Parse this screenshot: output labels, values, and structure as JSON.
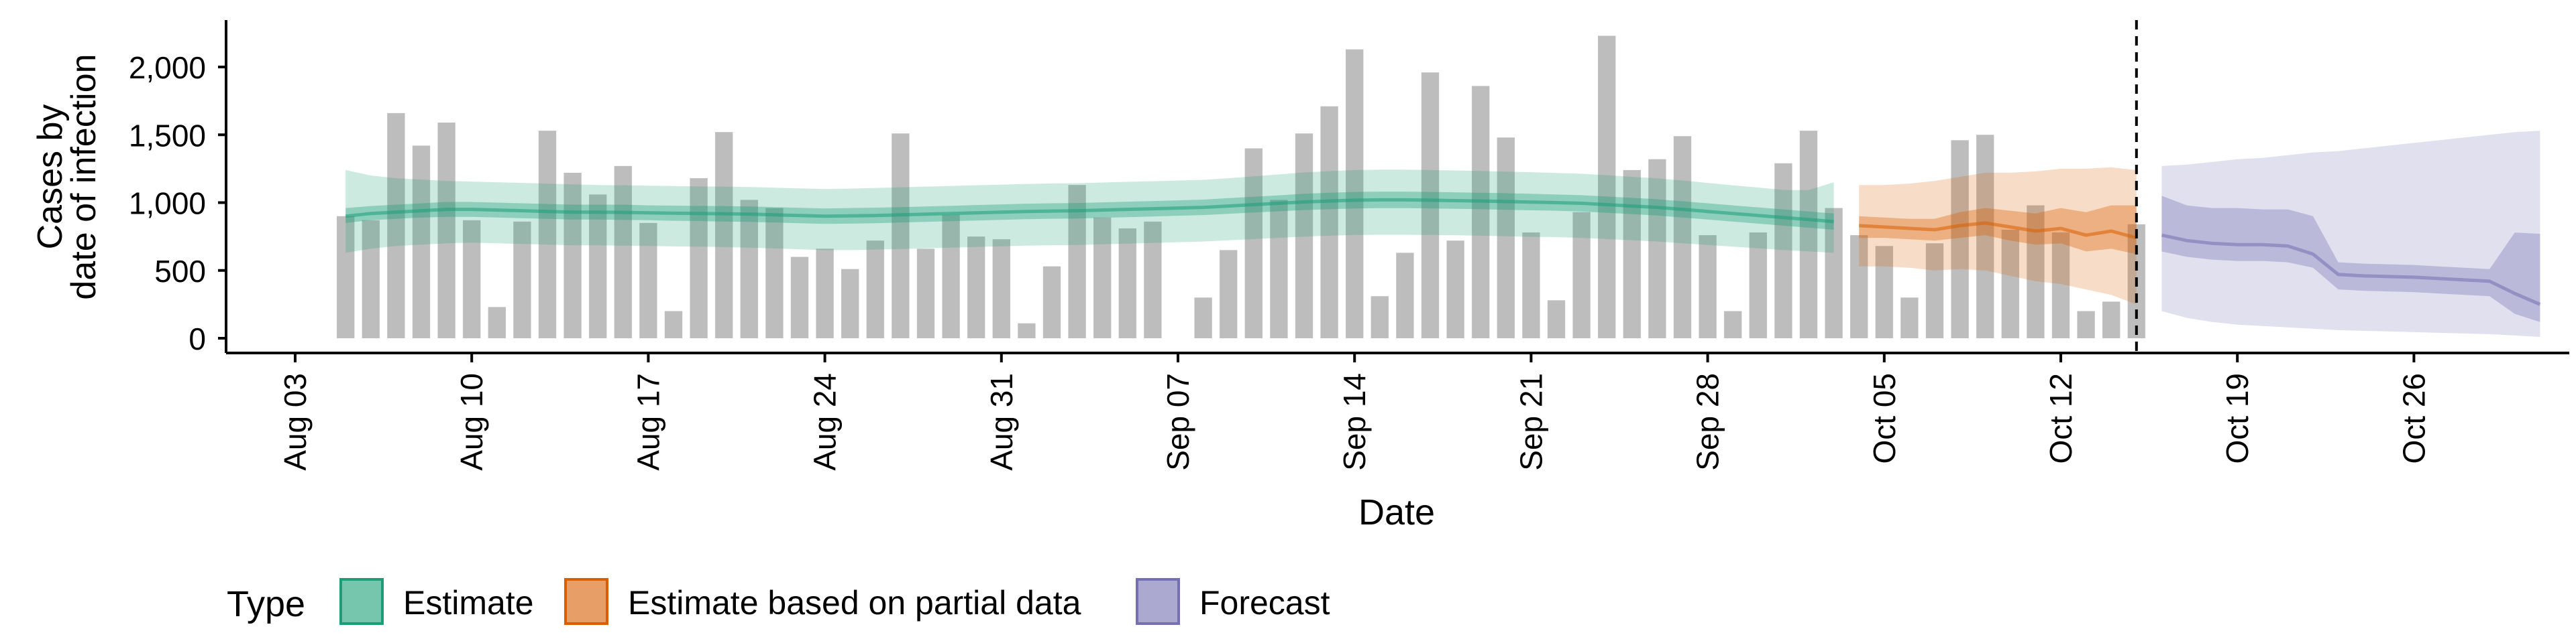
{
  "chart_data": {
    "type": "bar",
    "xlabel": "Date",
    "ylabel_lines": [
      "Cases by",
      "date of infection"
    ],
    "ylim": [
      0,
      2400
    ],
    "yticks": [
      0,
      500,
      1000,
      1500,
      2000
    ],
    "ytick_labels": [
      "0",
      "500",
      "1,000",
      "1,500",
      "2,000"
    ],
    "xlim": [
      "2020-07-31",
      "2020-10-31"
    ],
    "xtick_dates": [
      "2020-08-03",
      "2020-08-10",
      "2020-08-17",
      "2020-08-24",
      "2020-08-31",
      "2020-09-07",
      "2020-09-14",
      "2020-09-21",
      "2020-09-28",
      "2020-10-05",
      "2020-10-12",
      "2020-10-19",
      "2020-10-26"
    ],
    "xtick_labels": [
      "Aug 03",
      "Aug 10",
      "Aug 17",
      "Aug 24",
      "Aug 31",
      "Sep 07",
      "Sep 14",
      "Sep 21",
      "Sep 28",
      "Oct 05",
      "Oct 12",
      "Oct 19",
      "Oct 26"
    ],
    "forecast_line_date": "2020-10-15",
    "bars": {
      "start_date": "2020-08-05",
      "values": [
        900,
        870,
        1660,
        1420,
        1590,
        870,
        230,
        860,
        1530,
        1220,
        1060,
        1270,
        850,
        200,
        1180,
        1520,
        1020,
        960,
        600,
        660,
        510,
        720,
        1510,
        660,
        910,
        750,
        730,
        110,
        530,
        1130,
        890,
        810,
        860,
        0,
        300,
        650,
        1400,
        1020,
        1510,
        1710,
        2130,
        310,
        630,
        1960,
        720,
        1860,
        1480,
        780,
        280,
        930,
        2230,
        1240,
        1320,
        1490,
        760,
        200,
        780,
        1290,
        1530,
        960,
        760,
        680,
        300,
        700,
        1460,
        1500,
        800,
        980,
        780,
        200,
        270,
        840
      ]
    },
    "legend": {
      "title": "Type",
      "position": "bottom",
      "entries": [
        {
          "label": "Estimate",
          "fill": "#1b9e77",
          "stroke": "#1b9e77"
        },
        {
          "label": "Estimate based on partial data",
          "fill": "#d95f02",
          "stroke": "#d95f02"
        },
        {
          "label": "Forecast",
          "fill": "#7570b3",
          "stroke": "#7570b3"
        }
      ]
    },
    "series": [
      {
        "type": "Estimate",
        "color": "#1b9e77",
        "start_date": "2020-08-05",
        "median": [
          900,
          920,
          930,
          940,
          950,
          950,
          945,
          940,
          935,
          930,
          930,
          928,
          925,
          922,
          920,
          918,
          915,
          910,
          905,
          900,
          902,
          905,
          910,
          915,
          920,
          925,
          930,
          935,
          938,
          940,
          945,
          950,
          955,
          960,
          965,
          975,
          985,
          995,
          1005,
          1012,
          1018,
          1020,
          1020,
          1018,
          1015,
          1012,
          1008,
          1004,
          1000,
          995,
          985,
          975,
          965,
          950,
          935,
          920,
          905,
          890,
          875,
          860
        ],
        "ci50": [
          [
            850,
            960
          ],
          [
            870,
            975
          ],
          [
            880,
            985
          ],
          [
            890,
            995
          ],
          [
            895,
            1005
          ],
          [
            895,
            1005
          ],
          [
            890,
            1000
          ],
          [
            885,
            995
          ],
          [
            880,
            990
          ],
          [
            875,
            985
          ],
          [
            875,
            985
          ],
          [
            872,
            985
          ],
          [
            870,
            980
          ],
          [
            866,
            978
          ],
          [
            864,
            976
          ],
          [
            860,
            975
          ],
          [
            858,
            972
          ],
          [
            853,
            967
          ],
          [
            848,
            962
          ],
          [
            843,
            957
          ],
          [
            845,
            960
          ],
          [
            848,
            963
          ],
          [
            853,
            967
          ],
          [
            858,
            972
          ],
          [
            863,
            977
          ],
          [
            868,
            982
          ],
          [
            873,
            987
          ],
          [
            878,
            992
          ],
          [
            881,
            995
          ],
          [
            883,
            997
          ],
          [
            888,
            1002
          ],
          [
            893,
            1007
          ],
          [
            898,
            1012
          ],
          [
            903,
            1017
          ],
          [
            908,
            1022
          ],
          [
            917,
            1033
          ],
          [
            927,
            1043
          ],
          [
            936,
            1054
          ],
          [
            945,
            1065
          ],
          [
            951,
            1073
          ],
          [
            957,
            1079
          ],
          [
            959,
            1081
          ],
          [
            959,
            1081
          ],
          [
            957,
            1079
          ],
          [
            954,
            1076
          ],
          [
            951,
            1073
          ],
          [
            947,
            1069
          ],
          [
            943,
            1065
          ],
          [
            940,
            1060
          ],
          [
            935,
            1055
          ],
          [
            925,
            1045
          ],
          [
            915,
            1035
          ],
          [
            905,
            1025
          ],
          [
            890,
            1010
          ],
          [
            875,
            995
          ],
          [
            860,
            980
          ],
          [
            845,
            965
          ],
          [
            830,
            950
          ],
          [
            815,
            935
          ],
          [
            800,
            920
          ]
        ],
        "ci90": [
          [
            630,
            1240
          ],
          [
            660,
            1200
          ],
          [
            680,
            1180
          ],
          [
            690,
            1170
          ],
          [
            700,
            1160
          ],
          [
            705,
            1155
          ],
          [
            700,
            1150
          ],
          [
            695,
            1145
          ],
          [
            690,
            1140
          ],
          [
            685,
            1135
          ],
          [
            685,
            1130
          ],
          [
            683,
            1128
          ],
          [
            680,
            1125
          ],
          [
            677,
            1122
          ],
          [
            675,
            1120
          ],
          [
            672,
            1118
          ],
          [
            668,
            1115
          ],
          [
            662,
            1110
          ],
          [
            656,
            1105
          ],
          [
            650,
            1100
          ],
          [
            650,
            1103
          ],
          [
            653,
            1108
          ],
          [
            658,
            1113
          ],
          [
            663,
            1118
          ],
          [
            668,
            1123
          ],
          [
            673,
            1128
          ],
          [
            678,
            1133
          ],
          [
            683,
            1138
          ],
          [
            686,
            1141
          ],
          [
            688,
            1143
          ],
          [
            693,
            1148
          ],
          [
            698,
            1153
          ],
          [
            703,
            1158
          ],
          [
            708,
            1163
          ],
          [
            713,
            1168
          ],
          [
            722,
            1180
          ],
          [
            731,
            1194
          ],
          [
            740,
            1208
          ],
          [
            749,
            1222
          ],
          [
            756,
            1232
          ],
          [
            761,
            1240
          ],
          [
            763,
            1243
          ],
          [
            763,
            1243
          ],
          [
            761,
            1240
          ],
          [
            759,
            1237
          ],
          [
            756,
            1233
          ],
          [
            752,
            1228
          ],
          [
            748,
            1224
          ],
          [
            745,
            1219
          ],
          [
            740,
            1213
          ],
          [
            731,
            1202
          ],
          [
            722,
            1190
          ],
          [
            713,
            1179
          ],
          [
            700,
            1163
          ],
          [
            688,
            1145
          ],
          [
            675,
            1128
          ],
          [
            663,
            1111
          ],
          [
            650,
            1094
          ],
          [
            640,
            1092
          ],
          [
            630,
            1150
          ]
        ]
      },
      {
        "type": "Estimate based on partial data",
        "color": "#d95f02",
        "start_date": "2020-10-04",
        "median": [
          830,
          820,
          810,
          800,
          830,
          850,
          820,
          790,
          810,
          760,
          790,
          740
        ],
        "ci50": [
          [
            740,
            900
          ],
          [
            740,
            890
          ],
          [
            730,
            880
          ],
          [
            720,
            880
          ],
          [
            740,
            930
          ],
          [
            760,
            960
          ],
          [
            720,
            940
          ],
          [
            690,
            920
          ],
          [
            700,
            960
          ],
          [
            640,
            930
          ],
          [
            660,
            980
          ],
          [
            620,
            980
          ]
        ],
        "ci90": [
          [
            530,
            1130
          ],
          [
            530,
            1130
          ],
          [
            520,
            1140
          ],
          [
            500,
            1160
          ],
          [
            510,
            1190
          ],
          [
            500,
            1220
          ],
          [
            460,
            1220
          ],
          [
            420,
            1230
          ],
          [
            400,
            1250
          ],
          [
            360,
            1250
          ],
          [
            320,
            1260
          ],
          [
            250,
            1240
          ]
        ]
      },
      {
        "type": "Forecast",
        "color": "#7570b3",
        "start_date": "2020-10-16",
        "median": [
          760,
          720,
          700,
          690,
          690,
          680,
          620,
          470,
          460,
          455,
          450,
          440,
          430,
          420,
          330,
          250
        ],
        "ci50": [
          [
            640,
            1050
          ],
          [
            600,
            980
          ],
          [
            580,
            960
          ],
          [
            570,
            960
          ],
          [
            570,
            950
          ],
          [
            560,
            950
          ],
          [
            520,
            900
          ],
          [
            360,
            560
          ],
          [
            350,
            550
          ],
          [
            345,
            545
          ],
          [
            340,
            540
          ],
          [
            330,
            530
          ],
          [
            320,
            520
          ],
          [
            310,
            510
          ],
          [
            180,
            780
          ],
          [
            120,
            770
          ]
        ],
        "ci90": [
          [
            200,
            1270
          ],
          [
            150,
            1280
          ],
          [
            120,
            1300
          ],
          [
            100,
            1320
          ],
          [
            90,
            1330
          ],
          [
            80,
            1350
          ],
          [
            70,
            1370
          ],
          [
            60,
            1380
          ],
          [
            55,
            1400
          ],
          [
            50,
            1420
          ],
          [
            45,
            1440
          ],
          [
            40,
            1460
          ],
          [
            35,
            1480
          ],
          [
            30,
            1500
          ],
          [
            20,
            1520
          ],
          [
            10,
            1530
          ]
        ]
      }
    ]
  }
}
